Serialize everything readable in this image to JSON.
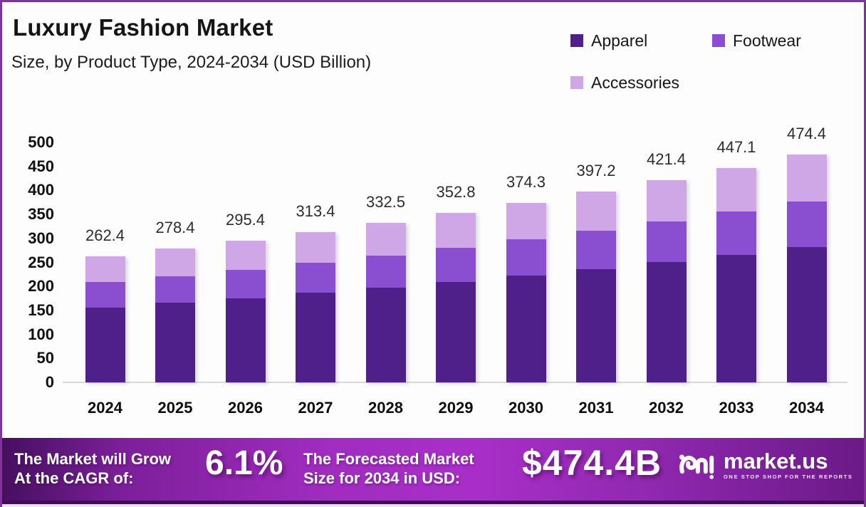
{
  "header": {
    "title": "Luxury Fashion Market",
    "subtitle": "Size, by Product Type, 2024-2034 (USD Billion)"
  },
  "legend": [
    {
      "label": "Apparel",
      "color": "#4f1f8a"
    },
    {
      "label": "Footwear",
      "color": "#8a4fd0"
    },
    {
      "label": "Accessories",
      "color": "#cfa7e6"
    }
  ],
  "chart_data": {
    "type": "bar",
    "stacked": true,
    "title": "Luxury Fashion Market Size, by Product Type, 2024-2034 (USD Billion)",
    "categories": [
      "2024",
      "2025",
      "2026",
      "2027",
      "2028",
      "2029",
      "2030",
      "2031",
      "2032",
      "2033",
      "2034"
    ],
    "series": [
      {
        "name": "Apparel",
        "color": "#4f1f8a",
        "values": [
          155.9,
          165.4,
          175.5,
          186.2,
          197.5,
          209.6,
          222.3,
          235.9,
          250.3,
          265.6,
          281.8
        ]
      },
      {
        "name": "Footwear",
        "color": "#8a4fd0",
        "values": [
          52.7,
          56.0,
          59.4,
          63.0,
          66.8,
          70.9,
          75.2,
          79.8,
          84.7,
          89.9,
          95.4
        ]
      },
      {
        "name": "Accessories",
        "color": "#cfa7e6",
        "values": [
          53.8,
          57.0,
          60.5,
          64.2,
          68.2,
          72.3,
          76.8,
          81.5,
          86.4,
          91.6,
          97.2
        ]
      }
    ],
    "totals": [
      262.4,
      278.4,
      295.4,
      313.4,
      332.5,
      352.8,
      374.3,
      397.2,
      421.4,
      447.1,
      474.4
    ],
    "xlabel": "",
    "ylabel": "",
    "ylim": [
      0,
      500
    ],
    "yticks": [
      0,
      50,
      100,
      150,
      200,
      250,
      300,
      350,
      400,
      450,
      500
    ],
    "grid": false,
    "legend_position": "top-right"
  },
  "footer": {
    "cagr_label_line1": "The Market will Grow",
    "cagr_label_line2": "At the CAGR of:",
    "cagr_value": "6.1%",
    "forecast_label_line1": "The Forecasted Market",
    "forecast_label_line2": "Size for 2034 in USD:",
    "forecast_value": "$474.4B",
    "brand_name": "market.us",
    "brand_tagline": "ONE STOP SHOP FOR THE REPORTS"
  }
}
